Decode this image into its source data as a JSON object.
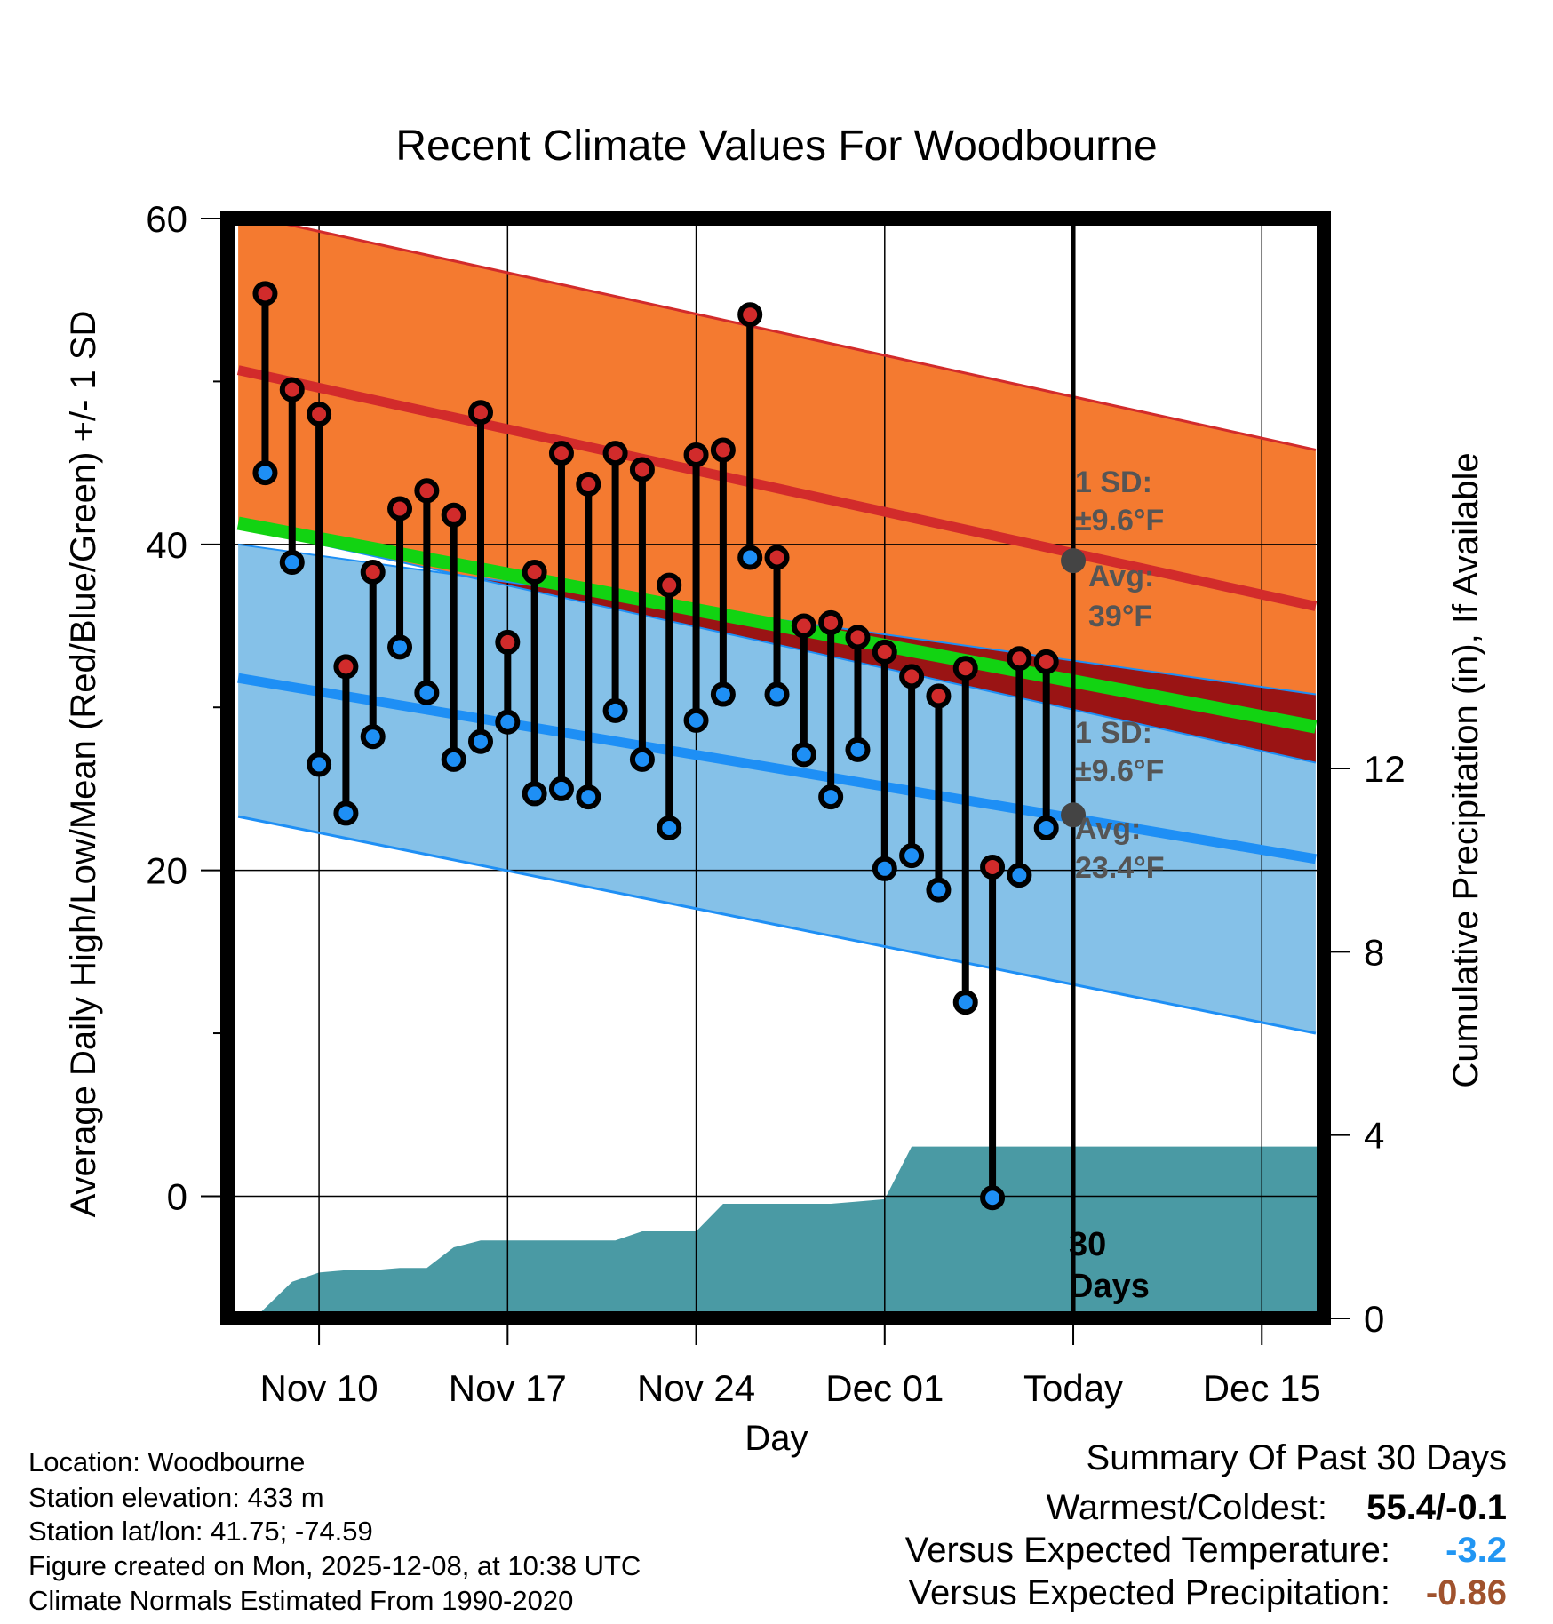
{
  "chart_data": {
    "type": "line",
    "title": "Recent Climate Values For Woodbourne",
    "xlabel": "Day",
    "ylabel": "Average Daily High/Low/Mean (Red/Blue/Green) +/- 1 SD",
    "y2label": "Cumulative Precipitation (in), If Available",
    "ylim": [
      -7.5,
      60
    ],
    "y_ticks": [
      0,
      20,
      40,
      60
    ],
    "y_tick_labels": [
      "0",
      "20",
      "40",
      "60"
    ],
    "y2lim": [
      0,
      24
    ],
    "y2_ticks": [
      0,
      4,
      8,
      12
    ],
    "y2_tick_labels": [
      "0",
      "4",
      "8",
      "12"
    ],
    "xlim": [
      -3.4,
      37.3
    ],
    "x_ticks": [
      0,
      7,
      14,
      21,
      28,
      35
    ],
    "x_tick_labels": [
      "Nov 10",
      "Nov 17",
      "Nov 24",
      "Dec 01",
      "Today",
      "Dec 15"
    ],
    "today_index": 28,
    "days": [
      "Nov 08",
      "Nov 09",
      "Nov 10",
      "Nov 11",
      "Nov 12",
      "Nov 13",
      "Nov 14",
      "Nov 15",
      "Nov 16",
      "Nov 17",
      "Nov 18",
      "Nov 19",
      "Nov 20",
      "Nov 21",
      "Nov 22",
      "Nov 23",
      "Nov 24",
      "Nov 25",
      "Nov 26",
      "Nov 27",
      "Nov 28",
      "Nov 29",
      "Nov 30",
      "Dec 01",
      "Dec 02",
      "Dec 03",
      "Dec 04",
      "Dec 05",
      "Dec 06",
      "Dec 07"
    ],
    "day_x": [
      -2,
      -1,
      0,
      1,
      2,
      3,
      4,
      5,
      6,
      7,
      8,
      9,
      10,
      11,
      12,
      13,
      14,
      15,
      16,
      17,
      18,
      19,
      20,
      21,
      22,
      23,
      24,
      25,
      26,
      27
    ],
    "daily_high": [
      55.4,
      49.5,
      48,
      32.5,
      38.3,
      42.2,
      43.3,
      41.8,
      48.1,
      34,
      38.3,
      45.6,
      43.7,
      45.6,
      44.6,
      37.5,
      45.5,
      45.8,
      54.1,
      39.2,
      35,
      35.2,
      34.3,
      33.4,
      31.9,
      30.7,
      32.4,
      20.2,
      33,
      32.8
    ],
    "daily_low": [
      44.4,
      38.9,
      26.5,
      23.5,
      28.2,
      33.7,
      30.9,
      26.8,
      27.9,
      29.1,
      24.7,
      25,
      24.5,
      29.8,
      26.8,
      22.6,
      29.2,
      30.8,
      39.2,
      30.8,
      27.1,
      24.5,
      27.4,
      20.1,
      20.9,
      18.8,
      11.9,
      -0.1,
      19.7,
      22.6
    ],
    "normals": {
      "x": [
        -3,
        37
      ],
      "high_avg": [
        50.7,
        36.2
      ],
      "high_sd_upper": [
        60.3,
        45.8
      ],
      "high_sd_lower": [
        41.1,
        26.6
      ],
      "mean_avg": [
        41.3,
        28.8
      ],
      "low_avg": [
        31.8,
        20.7
      ],
      "low_sd_upper": [
        40.0,
        30.8
      ],
      "low_sd_lower": [
        23.3,
        10.0
      ]
    },
    "precip_cumulative": {
      "x": [
        -3.3,
        -2.4,
        -1,
        0,
        1,
        2,
        3,
        4,
        5,
        6,
        7,
        8,
        9,
        10,
        11,
        12,
        13,
        14,
        15,
        16,
        17,
        18,
        19,
        20,
        21,
        22,
        23,
        24,
        25,
        26,
        27,
        28,
        37.3
      ],
      "values": [
        0,
        0,
        0.8,
        1.0,
        1.05,
        1.05,
        1.1,
        1.1,
        1.55,
        1.7,
        1.7,
        1.7,
        1.7,
        1.7,
        1.7,
        1.9,
        1.9,
        1.9,
        2.5,
        2.5,
        2.5,
        2.5,
        2.5,
        2.55,
        2.6,
        3.75,
        3.75,
        3.75,
        3.75,
        3.75,
        3.75,
        3.75,
        3.75
      ]
    }
  },
  "annotations": {
    "high_sd_line1": "1 SD:",
    "high_sd_line2": "±9.6°F",
    "high_avg_line1": "Avg:",
    "high_avg_line2": "39°F",
    "low_sd_line1": "1 SD:",
    "low_sd_line2": "±9.6°F",
    "low_avg_line1": "Avg:",
    "low_avg_line2": "23.4°F",
    "high_avg_value": 39,
    "low_avg_value": 23.4,
    "days_line1": "30",
    "days_line2": "Days"
  },
  "info": {
    "location": "Location: Woodbourne",
    "elevation": "Station elevation: 433 m",
    "latlon": "Station lat/lon: 41.75; -74.59",
    "created": "Figure created on Mon, 2025-12-08, at 10:38 UTC",
    "normals": "Climate Normals Estimated From 1990-2020"
  },
  "summary": {
    "heading": "Summary Of Past 30 Days",
    "warmest_label": "Warmest/Coldest:",
    "warmest_value": "55.4/-0.1",
    "temp_label": "Versus Expected Temperature:",
    "temp_value": "-3.2",
    "precip_label": "Versus Expected Precipitation:",
    "precip_value": "-0.86"
  },
  "colors": {
    "high_band": "#f47a30",
    "high_line": "#d22b2b",
    "mean_line": "#12d312",
    "overlap_band": "#9a1414",
    "low_band": "#85c1e8",
    "low_line": "#1e8ff5",
    "precip": "#4a9aa4",
    "dot_high": "#d12b2b",
    "dot_low": "#1e8ff5",
    "avg_marker": "#444444",
    "temp_value": "#2196f3",
    "precip_value": "#a0522d"
  }
}
